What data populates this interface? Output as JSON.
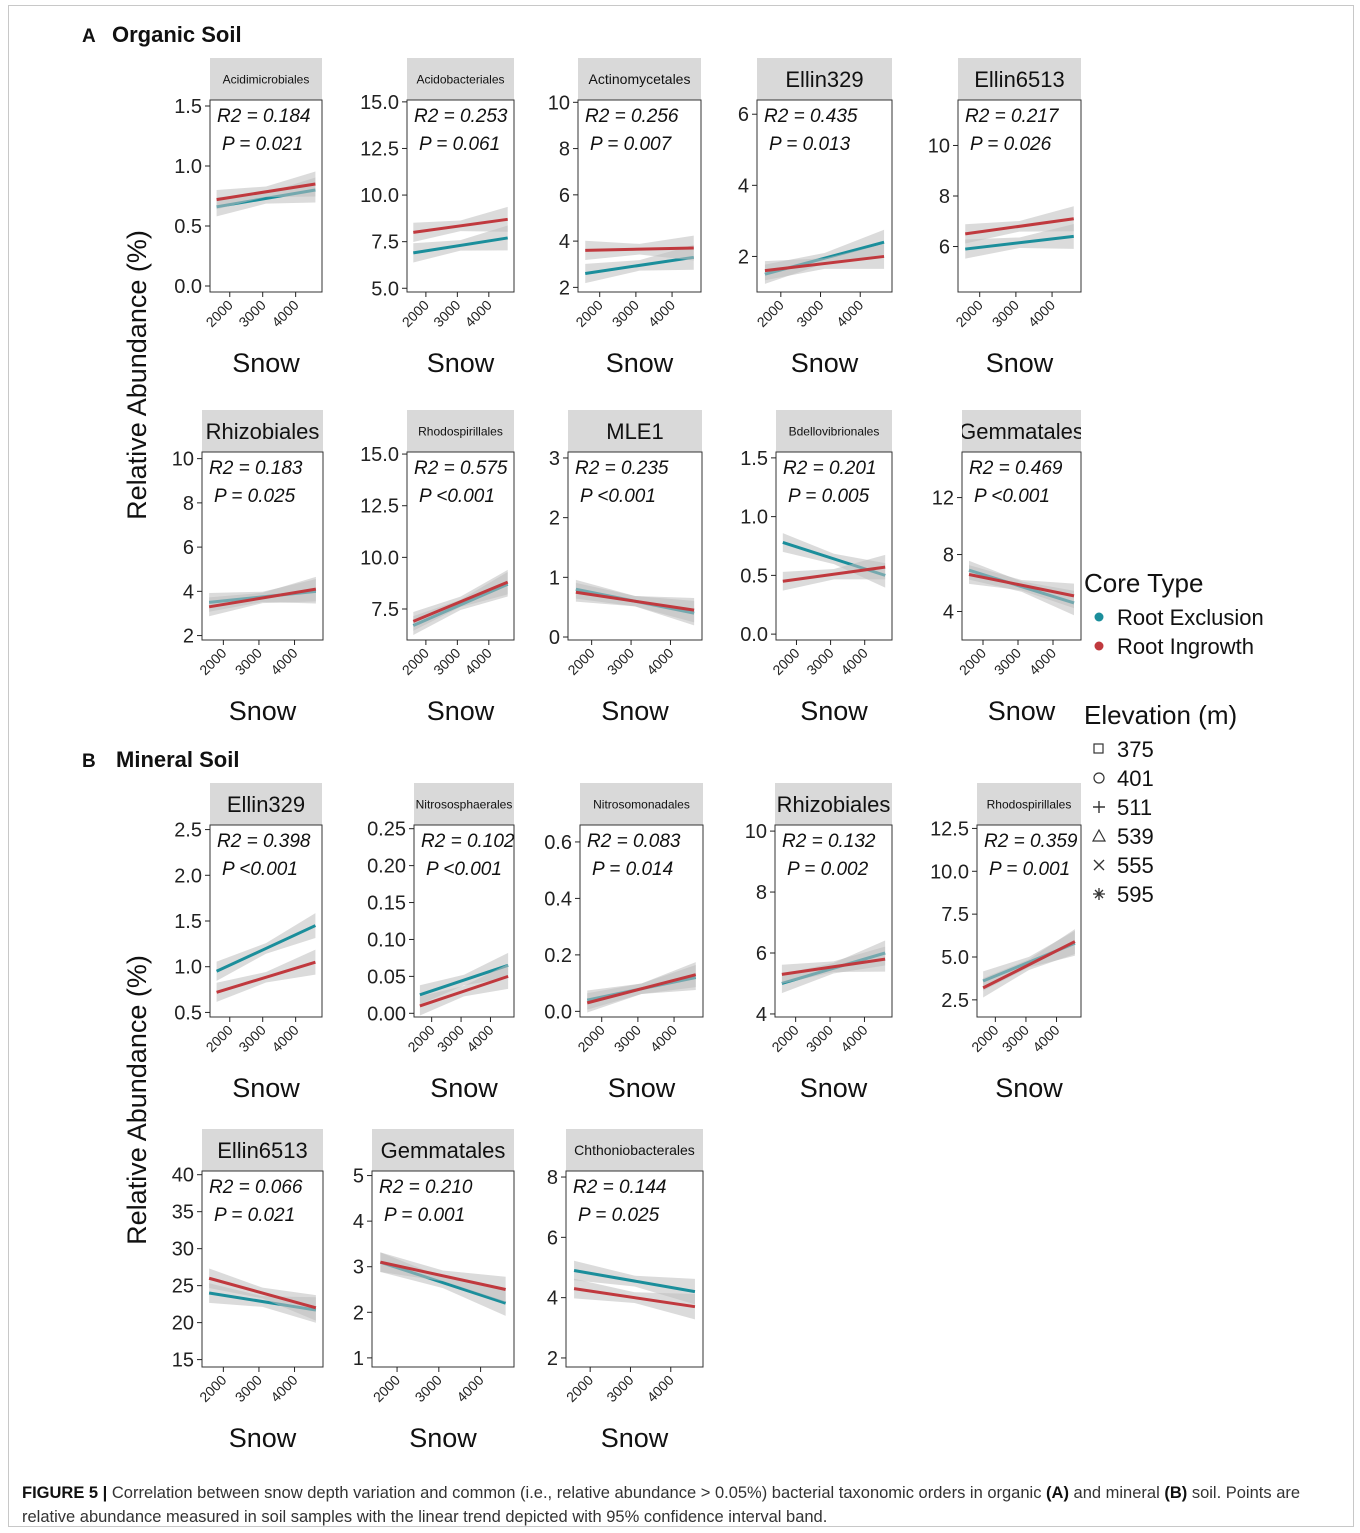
{
  "panels": [
    {
      "letter": "A",
      "title": "Organic Soil"
    },
    {
      "letter": "B",
      "title": "Mineral Soil"
    }
  ],
  "y_axis_label": "Relative Abundance (%)",
  "legend": {
    "core_type_title": "Core Type",
    "core_types": [
      {
        "name": "Root Exclusion",
        "color": "#1b8e9b"
      },
      {
        "name": "Root Ingrowth",
        "color": "#c0393e"
      }
    ],
    "elevation_title": "Elevation (m)",
    "elevations": [
      {
        "label": "375",
        "shape": "square"
      },
      {
        "label": "401",
        "shape": "circle"
      },
      {
        "label": "511",
        "shape": "plus"
      },
      {
        "label": "539",
        "shape": "triangle"
      },
      {
        "label": "555",
        "shape": "cross"
      },
      {
        "label": "595",
        "shape": "asterisk"
      }
    ]
  },
  "caption": {
    "label": "FIGURE 5 |",
    "text_1": " Correlation between snow depth variation and common (i.e., relative abundance > 0.05%) bacterial taxonomic orders in organic ",
    "bold_a": "(A)",
    "text_2": " and mineral ",
    "bold_b": "(B)",
    "text_3": " soil. Points are relative abundance measured in soil samples with the linear trend depicted with 95% confidence interval band."
  },
  "chart_data": [
    {
      "type": "scatter",
      "panel": "A",
      "facet": "Acidimicrobiales",
      "xlabel": "Snow",
      "xticks": [
        "2000",
        "3000",
        "4000"
      ],
      "xlim": [
        1400,
        4800
      ],
      "ylim": [
        -0.05,
        1.55
      ],
      "yticks": [
        "0.0",
        "0.5",
        "1.0",
        "1.5"
      ],
      "r2": "R2 = 0.184",
      "p": "P = 0.021",
      "series": [
        {
          "name": "Root Exclusion",
          "trend": [
            [
              1600,
              0.66
            ],
            [
              4600,
              0.8
            ]
          ]
        },
        {
          "name": "Root Ingrowth",
          "trend": [
            [
              1600,
              0.72
            ],
            [
              4600,
              0.85
            ]
          ]
        }
      ]
    },
    {
      "type": "scatter",
      "panel": "A",
      "facet": "Acidobacteriales",
      "xlabel": "Snow",
      "xticks": [
        "2000",
        "3000",
        "4000"
      ],
      "xlim": [
        1400,
        4800
      ],
      "ylim": [
        4.8,
        15.1
      ],
      "yticks": [
        "5.0",
        "7.5",
        "10.0",
        "12.5",
        "15.0"
      ],
      "r2": "R2 = 0.253",
      "p": "P = 0.061",
      "series": [
        {
          "name": "Root Exclusion",
          "trend": [
            [
              1600,
              6.9
            ],
            [
              4600,
              7.7
            ]
          ]
        },
        {
          "name": "Root Ingrowth",
          "trend": [
            [
              1600,
              8.0
            ],
            [
              4600,
              8.7
            ]
          ]
        }
      ]
    },
    {
      "type": "scatter",
      "panel": "A",
      "facet": "Actinomycetales",
      "xlabel": "Snow",
      "xticks": [
        "2000",
        "3000",
        "4000"
      ],
      "xlim": [
        1400,
        4800
      ],
      "ylim": [
        1.8,
        10.1
      ],
      "yticks": [
        "2",
        "4",
        "6",
        "8",
        "10"
      ],
      "r2": "R2 = 0.256",
      "p": "P = 0.007",
      "series": [
        {
          "name": "Root Exclusion",
          "trend": [
            [
              1600,
              2.6
            ],
            [
              4600,
              3.3
            ]
          ]
        },
        {
          "name": "Root Ingrowth",
          "trend": [
            [
              1600,
              3.6
            ],
            [
              4600,
              3.7
            ]
          ]
        }
      ]
    },
    {
      "type": "scatter",
      "panel": "A",
      "facet": "Ellin329",
      "xlabel": "Snow",
      "xticks": [
        "2000",
        "3000",
        "4000"
      ],
      "xlim": [
        1400,
        4800
      ],
      "ylim": [
        1.0,
        6.4
      ],
      "yticks": [
        "2",
        "4",
        "6"
      ],
      "r2": "R2 = 0.435",
      "p": "P = 0.013",
      "series": [
        {
          "name": "Root Exclusion",
          "trend": [
            [
              1600,
              1.5
            ],
            [
              4600,
              2.4
            ]
          ]
        },
        {
          "name": "Root Ingrowth",
          "trend": [
            [
              1600,
              1.6
            ],
            [
              4600,
              2.0
            ]
          ]
        }
      ]
    },
    {
      "type": "scatter",
      "panel": "A",
      "facet": "Ellin6513",
      "xlabel": "Snow",
      "xticks": [
        "2000",
        "3000",
        "4000"
      ],
      "xlim": [
        1400,
        4800
      ],
      "ylim": [
        4.2,
        11.8
      ],
      "yticks": [
        "6",
        "8",
        "10"
      ],
      "r2": "R2 = 0.217",
      "p": "P = 0.026",
      "series": [
        {
          "name": "Root Exclusion",
          "trend": [
            [
              1600,
              5.9
            ],
            [
              4600,
              6.4
            ]
          ]
        },
        {
          "name": "Root Ingrowth",
          "trend": [
            [
              1600,
              6.5
            ],
            [
              4600,
              7.1
            ]
          ]
        }
      ]
    },
    {
      "type": "scatter",
      "panel": "A",
      "facet": "Rhizobiales",
      "xlabel": "Snow",
      "xticks": [
        "2000",
        "3000",
        "4000"
      ],
      "xlim": [
        1400,
        4800
      ],
      "ylim": [
        1.8,
        10.3
      ],
      "yticks": [
        "2",
        "4",
        "6",
        "8",
        "10"
      ],
      "r2": "R2 = 0.183",
      "p": "P = 0.025",
      "series": [
        {
          "name": "Root Exclusion",
          "trend": [
            [
              1600,
              3.5
            ],
            [
              4600,
              4.0
            ]
          ]
        },
        {
          "name": "Root Ingrowth",
          "trend": [
            [
              1600,
              3.3
            ],
            [
              4600,
              4.1
            ]
          ]
        }
      ]
    },
    {
      "type": "scatter",
      "panel": "A",
      "facet": "Rhodospirillales",
      "xlabel": "Snow",
      "xticks": [
        "2000",
        "3000",
        "4000"
      ],
      "xlim": [
        1400,
        4800
      ],
      "ylim": [
        6.0,
        15.1
      ],
      "yticks": [
        "7.5",
        "10.0",
        "12.5",
        "15.0"
      ],
      "r2": "R2 = 0.575",
      "p": "P <0.001",
      "series": [
        {
          "name": "Root Exclusion",
          "trend": [
            [
              1600,
              6.7
            ],
            [
              4600,
              8.7
            ]
          ]
        },
        {
          "name": "Root Ingrowth",
          "trend": [
            [
              1600,
              6.9
            ],
            [
              4600,
              8.8
            ]
          ]
        }
      ]
    },
    {
      "type": "scatter",
      "panel": "A",
      "facet": "MLE1",
      "xlabel": "Snow",
      "xticks": [
        "2000",
        "3000",
        "4000"
      ],
      "xlim": [
        1400,
        4800
      ],
      "ylim": [
        -0.05,
        3.1
      ],
      "yticks": [
        "0",
        "1",
        "2",
        "3"
      ],
      "r2": "R2 = 0.235",
      "p": "P <0.001",
      "series": [
        {
          "name": "Root Exclusion",
          "trend": [
            [
              1600,
              0.8
            ],
            [
              4600,
              0.4
            ]
          ]
        },
        {
          "name": "Root Ingrowth",
          "trend": [
            [
              1600,
              0.75
            ],
            [
              4600,
              0.45
            ]
          ]
        }
      ]
    },
    {
      "type": "scatter",
      "panel": "A",
      "facet": "Bdellovibrionales",
      "xlabel": "Snow",
      "xticks": [
        "2000",
        "3000",
        "4000"
      ],
      "xlim": [
        1400,
        4800
      ],
      "ylim": [
        -0.05,
        1.55
      ],
      "yticks": [
        "0.0",
        "0.5",
        "1.0",
        "1.5"
      ],
      "r2": "R2 = 0.201",
      "p": "P = 0.005",
      "series": [
        {
          "name": "Root Exclusion",
          "trend": [
            [
              1600,
              0.78
            ],
            [
              4600,
              0.5
            ]
          ]
        },
        {
          "name": "Root Ingrowth",
          "trend": [
            [
              1600,
              0.45
            ],
            [
              4600,
              0.57
            ]
          ]
        }
      ]
    },
    {
      "type": "scatter",
      "panel": "A",
      "facet": "Gemmatales",
      "xlabel": "Snow",
      "xticks": [
        "2000",
        "3000",
        "4000"
      ],
      "xlim": [
        1400,
        4800
      ],
      "ylim": [
        2.0,
        15.2
      ],
      "yticks": [
        "4",
        "8",
        "12"
      ],
      "r2": "R2 = 0.469",
      "p": "P <0.001",
      "series": [
        {
          "name": "Root Exclusion",
          "trend": [
            [
              1600,
              6.9
            ],
            [
              4600,
              4.6
            ]
          ]
        },
        {
          "name": "Root Ingrowth",
          "trend": [
            [
              1600,
              6.6
            ],
            [
              4600,
              5.1
            ]
          ]
        }
      ]
    },
    {
      "type": "scatter",
      "panel": "B",
      "facet": "Ellin329",
      "xlabel": "Snow",
      "xticks": [
        "2000",
        "3000",
        "4000"
      ],
      "xlim": [
        1400,
        4800
      ],
      "ylim": [
        0.45,
        2.55
      ],
      "yticks": [
        "0.5",
        "1.0",
        "1.5",
        "2.0",
        "2.5"
      ],
      "r2": "R2 = 0.398",
      "p": "P <0.001",
      "series": [
        {
          "name": "Root Exclusion",
          "trend": [
            [
              1600,
              0.95
            ],
            [
              4600,
              1.45
            ]
          ]
        },
        {
          "name": "Root Ingrowth",
          "trend": [
            [
              1600,
              0.72
            ],
            [
              4600,
              1.05
            ]
          ]
        }
      ]
    },
    {
      "type": "scatter",
      "panel": "B",
      "facet": "Nitrososphaerales",
      "xlabel": "Snow",
      "xticks": [
        "2000",
        "3000",
        "4000"
      ],
      "xlim": [
        1400,
        4800
      ],
      "ylim": [
        -0.005,
        0.255
      ],
      "yticks": [
        "0.00",
        "0.05",
        "0.10",
        "0.15",
        "0.20",
        "0.25"
      ],
      "r2": "R2 = 0.102",
      "p": "P <0.001",
      "series": [
        {
          "name": "Root Exclusion",
          "trend": [
            [
              1600,
              0.025
            ],
            [
              4600,
              0.065
            ]
          ]
        },
        {
          "name": "Root Ingrowth",
          "trend": [
            [
              1600,
              0.01
            ],
            [
              4600,
              0.05
            ]
          ]
        }
      ]
    },
    {
      "type": "scatter",
      "panel": "B",
      "facet": "Nitrosomonadales",
      "xlabel": "Snow",
      "xticks": [
        "2000",
        "3000",
        "4000"
      ],
      "xlim": [
        1400,
        4800
      ],
      "ylim": [
        -0.02,
        0.66
      ],
      "yticks": [
        "0.0",
        "0.2",
        "0.4",
        "0.6"
      ],
      "r2": "R2 = 0.083",
      "p": "P = 0.014",
      "series": [
        {
          "name": "Root Exclusion",
          "trend": [
            [
              1600,
              0.04
            ],
            [
              4600,
              0.12
            ]
          ]
        },
        {
          "name": "Root Ingrowth",
          "trend": [
            [
              1600,
              0.03
            ],
            [
              4600,
              0.13
            ]
          ]
        }
      ]
    },
    {
      "type": "scatter",
      "panel": "B",
      "facet": "Rhizobiales",
      "xlabel": "Snow",
      "xticks": [
        "2000",
        "3000",
        "4000"
      ],
      "xlim": [
        1400,
        4800
      ],
      "ylim": [
        3.9,
        10.2
      ],
      "yticks": [
        "4",
        "6",
        "8",
        "10"
      ],
      "r2": "R2 = 0.132",
      "p": "P = 0.002",
      "series": [
        {
          "name": "Root Exclusion",
          "trend": [
            [
              1600,
              5.0
            ],
            [
              4600,
              6.0
            ]
          ]
        },
        {
          "name": "Root Ingrowth",
          "trend": [
            [
              1600,
              5.3
            ],
            [
              4600,
              5.8
            ]
          ]
        }
      ]
    },
    {
      "type": "scatter",
      "panel": "B",
      "facet": "Rhodospirillales",
      "xlabel": "Snow",
      "xticks": [
        "2000",
        "3000",
        "4000"
      ],
      "xlim": [
        1400,
        4800
      ],
      "ylim": [
        1.5,
        12.7
      ],
      "yticks": [
        "2.5",
        "5.0",
        "7.5",
        "10.0",
        "12.5"
      ],
      "r2": "R2 = 0.359",
      "p": "P = 0.001",
      "series": [
        {
          "name": "Root Exclusion",
          "trend": [
            [
              1600,
              3.6
            ],
            [
              4600,
              5.8
            ]
          ]
        },
        {
          "name": "Root Ingrowth",
          "trend": [
            [
              1600,
              3.2
            ],
            [
              4600,
              5.9
            ]
          ]
        }
      ]
    },
    {
      "type": "scatter",
      "panel": "B",
      "facet": "Ellin6513",
      "xlabel": "Snow",
      "xticks": [
        "2000",
        "3000",
        "4000"
      ],
      "xlim": [
        1400,
        4800
      ],
      "ylim": [
        14,
        40.5
      ],
      "yticks": [
        "15",
        "20",
        "25",
        "30",
        "35",
        "40"
      ],
      "r2": "R2 = 0.066",
      "p": "P = 0.021",
      "series": [
        {
          "name": "Root Exclusion",
          "trend": [
            [
              1600,
              24.0
            ],
            [
              4600,
              21.7
            ]
          ]
        },
        {
          "name": "Root Ingrowth",
          "trend": [
            [
              1600,
              26.0
            ],
            [
              4600,
              22.0
            ]
          ]
        }
      ]
    },
    {
      "type": "scatter",
      "panel": "B",
      "facet": "Gemmatales",
      "xlabel": "Snow",
      "xticks": [
        "2000",
        "3000",
        "4000"
      ],
      "xlim": [
        1400,
        4800
      ],
      "ylim": [
        0.8,
        5.1
      ],
      "yticks": [
        "1",
        "2",
        "3",
        "4",
        "5"
      ],
      "r2": "R2 = 0.210",
      "p": "P = 0.001",
      "series": [
        {
          "name": "Root Exclusion",
          "trend": [
            [
              1600,
              3.1
            ],
            [
              4600,
              2.2
            ]
          ]
        },
        {
          "name": "Root Ingrowth",
          "trend": [
            [
              1600,
              3.1
            ],
            [
              4600,
              2.5
            ]
          ]
        }
      ]
    },
    {
      "type": "scatter",
      "panel": "B",
      "facet": "Chthoniobacterales",
      "xlabel": "Snow",
      "xticks": [
        "2000",
        "3000",
        "4000"
      ],
      "xlim": [
        1400,
        4800
      ],
      "ylim": [
        1.7,
        8.2
      ],
      "yticks": [
        "2",
        "4",
        "6",
        "8"
      ],
      "r2": "R2 = 0.144",
      "p": "P = 0.025",
      "series": [
        {
          "name": "Root Exclusion",
          "trend": [
            [
              1600,
              4.9
            ],
            [
              4600,
              4.2
            ]
          ]
        },
        {
          "name": "Root Ingrowth",
          "trend": [
            [
              1600,
              4.3
            ],
            [
              4600,
              3.7
            ]
          ]
        }
      ]
    }
  ]
}
